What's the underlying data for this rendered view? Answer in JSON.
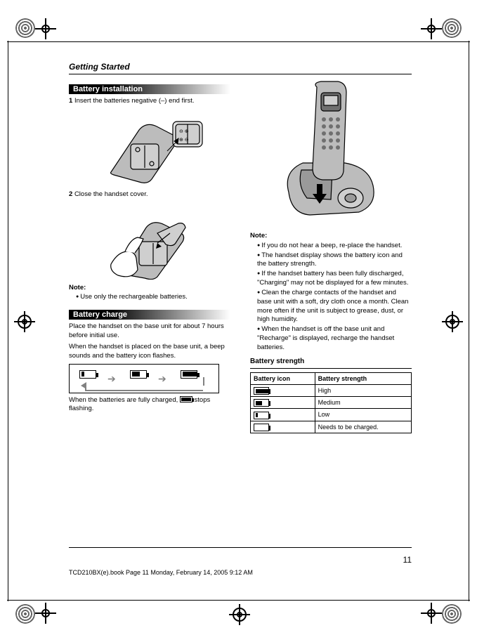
{
  "header": {
    "breadcrumb": "Getting Started"
  },
  "footer": {
    "page_number": "11",
    "meta_left": "TCD210BX(e).book  Page 11  Monday, February 14, 2005  9:12 AM",
    "meta_right": ""
  },
  "left": {
    "section1": {
      "title": "Battery installation",
      "step1_num": "1",
      "step1_txt": "Insert the batteries negative (–) end first.",
      "step2_num": "2",
      "step2_txt": "Close the handset cover.",
      "note_head": "Note:",
      "note1": "Use only the rechargeable batteries."
    },
    "section2": {
      "title": "Battery charge",
      "intro": "Place the handset on the base unit for about 7 hours before initial use.",
      "para2": "When the handset is placed on the base unit, a beep sounds and the battery icon flashes.",
      "cycle": {
        "stage1_fill_pct": 20,
        "stage2_fill_pct": 55,
        "stage3_fill_pct": 100
      },
      "para3_a": "When the batteries are fully charged, ",
      "para3_b": " stops flashing.",
      "batt_inline_fill_pct": 100
    }
  },
  "right": {
    "notes_head": "Note:",
    "notes": [
      "If you do not hear a beep, re-place the handset.",
      "The handset display shows the battery icon and the battery strength.",
      "If the handset battery has been fully discharged, \"Charging\" may not be displayed for a few minutes.",
      "Clean the charge contacts of the handset and base unit with a soft, dry cloth once a month. Clean more often if the unit is subject to grease, dust, or high humidity.",
      "When the handset is off the base unit and \"Recharge\" is displayed, recharge the handset batteries."
    ],
    "batt_section": {
      "title": "Battery strength",
      "table": {
        "col1": "Battery icon",
        "col2": "Battery strength",
        "rows": [
          {
            "icon_fill_pct": 100,
            "label": "High"
          },
          {
            "icon_fill_pct": 55,
            "label": "Medium"
          },
          {
            "icon_fill_pct": 20,
            "label": "Low"
          },
          {
            "icon_fill_pct": 0,
            "label": "Needs to be charged."
          }
        ]
      }
    }
  },
  "colors": {
    "text": "#000000",
    "bg": "#ffffff",
    "arrow": "#818181",
    "gradient_from": "#000000",
    "gradient_to": "#ffffff"
  }
}
